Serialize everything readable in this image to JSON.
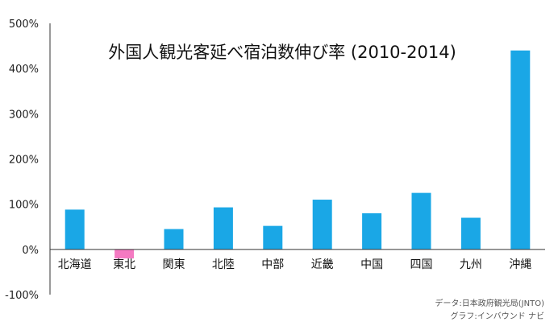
{
  "chart_data": {
    "type": "bar",
    "title": "外国人観光客延べ宿泊数伸び率 (2010-2014)",
    "categories": [
      "北海道",
      "東北",
      "関東",
      "北陸",
      "中部",
      "近畿",
      "中国",
      "四国",
      "九州",
      "沖縄"
    ],
    "values": [
      88,
      -20,
      45,
      93,
      52,
      110,
      80,
      125,
      70,
      440
    ],
    "ylim": [
      -100,
      500
    ],
    "yticks": [
      -100,
      0,
      100,
      200,
      300,
      400,
      500
    ],
    "ytick_labels": [
      "-100%",
      "0%",
      "100%",
      "200%",
      "300%",
      "400%",
      "500%"
    ],
    "xlabel": "",
    "ylabel": "",
    "grid": false,
    "colors": {
      "positive": "#1aa7e6",
      "negative": "#f47ac2"
    }
  },
  "credits": {
    "data_source": "データ:日本政府観光局(JNTO)",
    "graph_by": "グラフ:インバウンド ナビ"
  }
}
